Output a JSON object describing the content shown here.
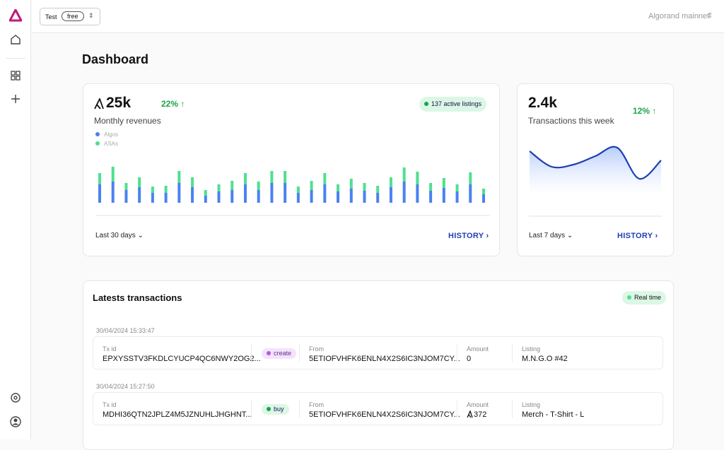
{
  "topbar": {
    "workspace": "Test",
    "plan": "free",
    "network": "Algorand mainnet"
  },
  "page_title": "Dashboard",
  "revenue_card": {
    "value": "25k",
    "label": "Monthly revenues",
    "change": "22%",
    "badge": "137 active listings",
    "period": "Last 30 days",
    "history": "HISTORY"
  },
  "week_card": {
    "value": "2.4k",
    "label": "Transactions this week",
    "change": "12%",
    "period": "Last 7 days",
    "history": "HISTORY"
  },
  "chart_data": [
    {
      "type": "bar",
      "stacked": true,
      "series": [
        {
          "name": "Algos",
          "color": "#4a82f0",
          "values": [
            26,
            30,
            18,
            22,
            14,
            14,
            28,
            22,
            10,
            16,
            18,
            26,
            18,
            28,
            28,
            14,
            18,
            26,
            16,
            20,
            17,
            14,
            22,
            30,
            26,
            17,
            21,
            16,
            26,
            12
          ]
        },
        {
          "name": "ASAs",
          "color": "#4fe08f",
          "values": [
            16,
            21,
            10,
            14,
            9,
            10,
            17,
            14,
            8,
            10,
            13,
            16,
            12,
            17,
            17,
            9,
            13,
            16,
            10,
            14,
            11,
            10,
            14,
            20,
            18,
            11,
            14,
            10,
            17,
            8
          ]
        }
      ]
    },
    {
      "type": "area",
      "color": "#1d3fb0",
      "values": [
        57,
        35,
        38,
        50,
        62,
        18,
        44
      ]
    }
  ],
  "transactions": {
    "title": "Latests transactions",
    "badge": "Real time",
    "rows": [
      {
        "timestamp": "30/04/2024 15:33:47",
        "tx_label": "Tx id",
        "tx_id": "EPXYSSTV3FKDLCYUCP4QC6NWY2OG2...",
        "kind": "create",
        "from_label": "From",
        "from": "5ETIOFVHFK6ENLN4X2S6IC3NJOM7CY...",
        "amount_label": "Amount",
        "amount": 0,
        "listing_label": "Listing",
        "listing": "M.N.G.O #42"
      },
      {
        "timestamp": "30/04/2024 15:27:50",
        "tx_label": "Tx id",
        "tx_id": "MDHI36QTN2JPLZ4M5JZNUHLJHGHNT...",
        "kind": "buy",
        "from_label": "From",
        "from": "5ETIOFVHFK6ENLN4X2S6IC3NJOM7CY...",
        "amount_label": "Amount",
        "amount": 372,
        "listing_label": "Listing",
        "listing": "Merch - T-Shirt - L"
      }
    ]
  }
}
